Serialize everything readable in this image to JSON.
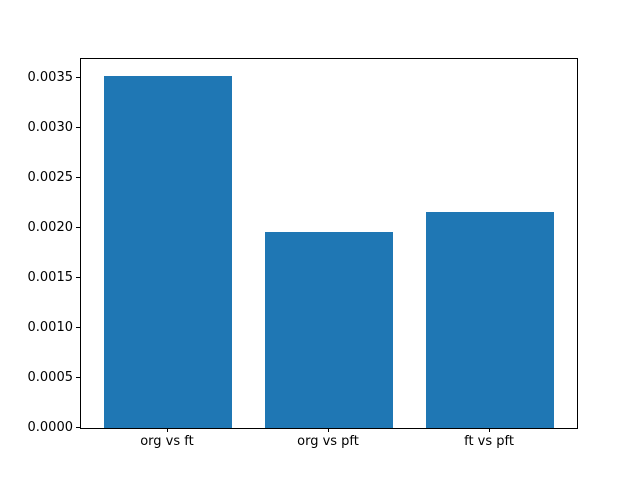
{
  "figure": {
    "background_color": "#ffffff",
    "axes_edge_color": "#000000",
    "text_color": "#000000"
  },
  "chart_data": {
    "type": "bar",
    "title": "",
    "xlabel": "",
    "ylabel": "",
    "categories": [
      "org vs ft",
      "org vs pft",
      "ft vs pft"
    ],
    "values": [
      0.00352,
      0.00196,
      0.00216
    ],
    "bar_color": "#1f77b4",
    "bar_width_fraction": 0.8,
    "xlim": [
      -0.54,
      2.54
    ],
    "ylim": [
      0,
      0.003694
    ],
    "yticks": [
      0.0,
      0.0005,
      0.001,
      0.0015,
      0.002,
      0.0025,
      0.003,
      0.0035
    ],
    "ytick_labels": [
      "0.0000",
      "0.0005",
      "0.0010",
      "0.0015",
      "0.0020",
      "0.0025",
      "0.0030",
      "0.0035"
    ],
    "grid": false,
    "legend": null
  }
}
